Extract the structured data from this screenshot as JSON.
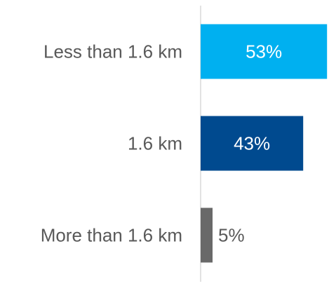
{
  "chart_data": {
    "type": "bar",
    "orientation": "horizontal",
    "categories": [
      "Less than 1.6 km",
      "1.6 km",
      "More than 1.6 km"
    ],
    "values": [
      53,
      43,
      5
    ],
    "value_labels": [
      "53%",
      "43%",
      "5%"
    ],
    "value_unit": "%",
    "xlim": [
      0,
      60
    ],
    "grid": false,
    "legend": "none",
    "colors": [
      "#00b0f0",
      "#004a8f",
      "#696969"
    ],
    "value_label_colors": [
      "#ffffff",
      "#ffffff",
      "#595959"
    ],
    "value_label_position": [
      "inside",
      "inside",
      "outside"
    ],
    "axis_color": "#d9d9d9",
    "label_color": "#595959"
  }
}
